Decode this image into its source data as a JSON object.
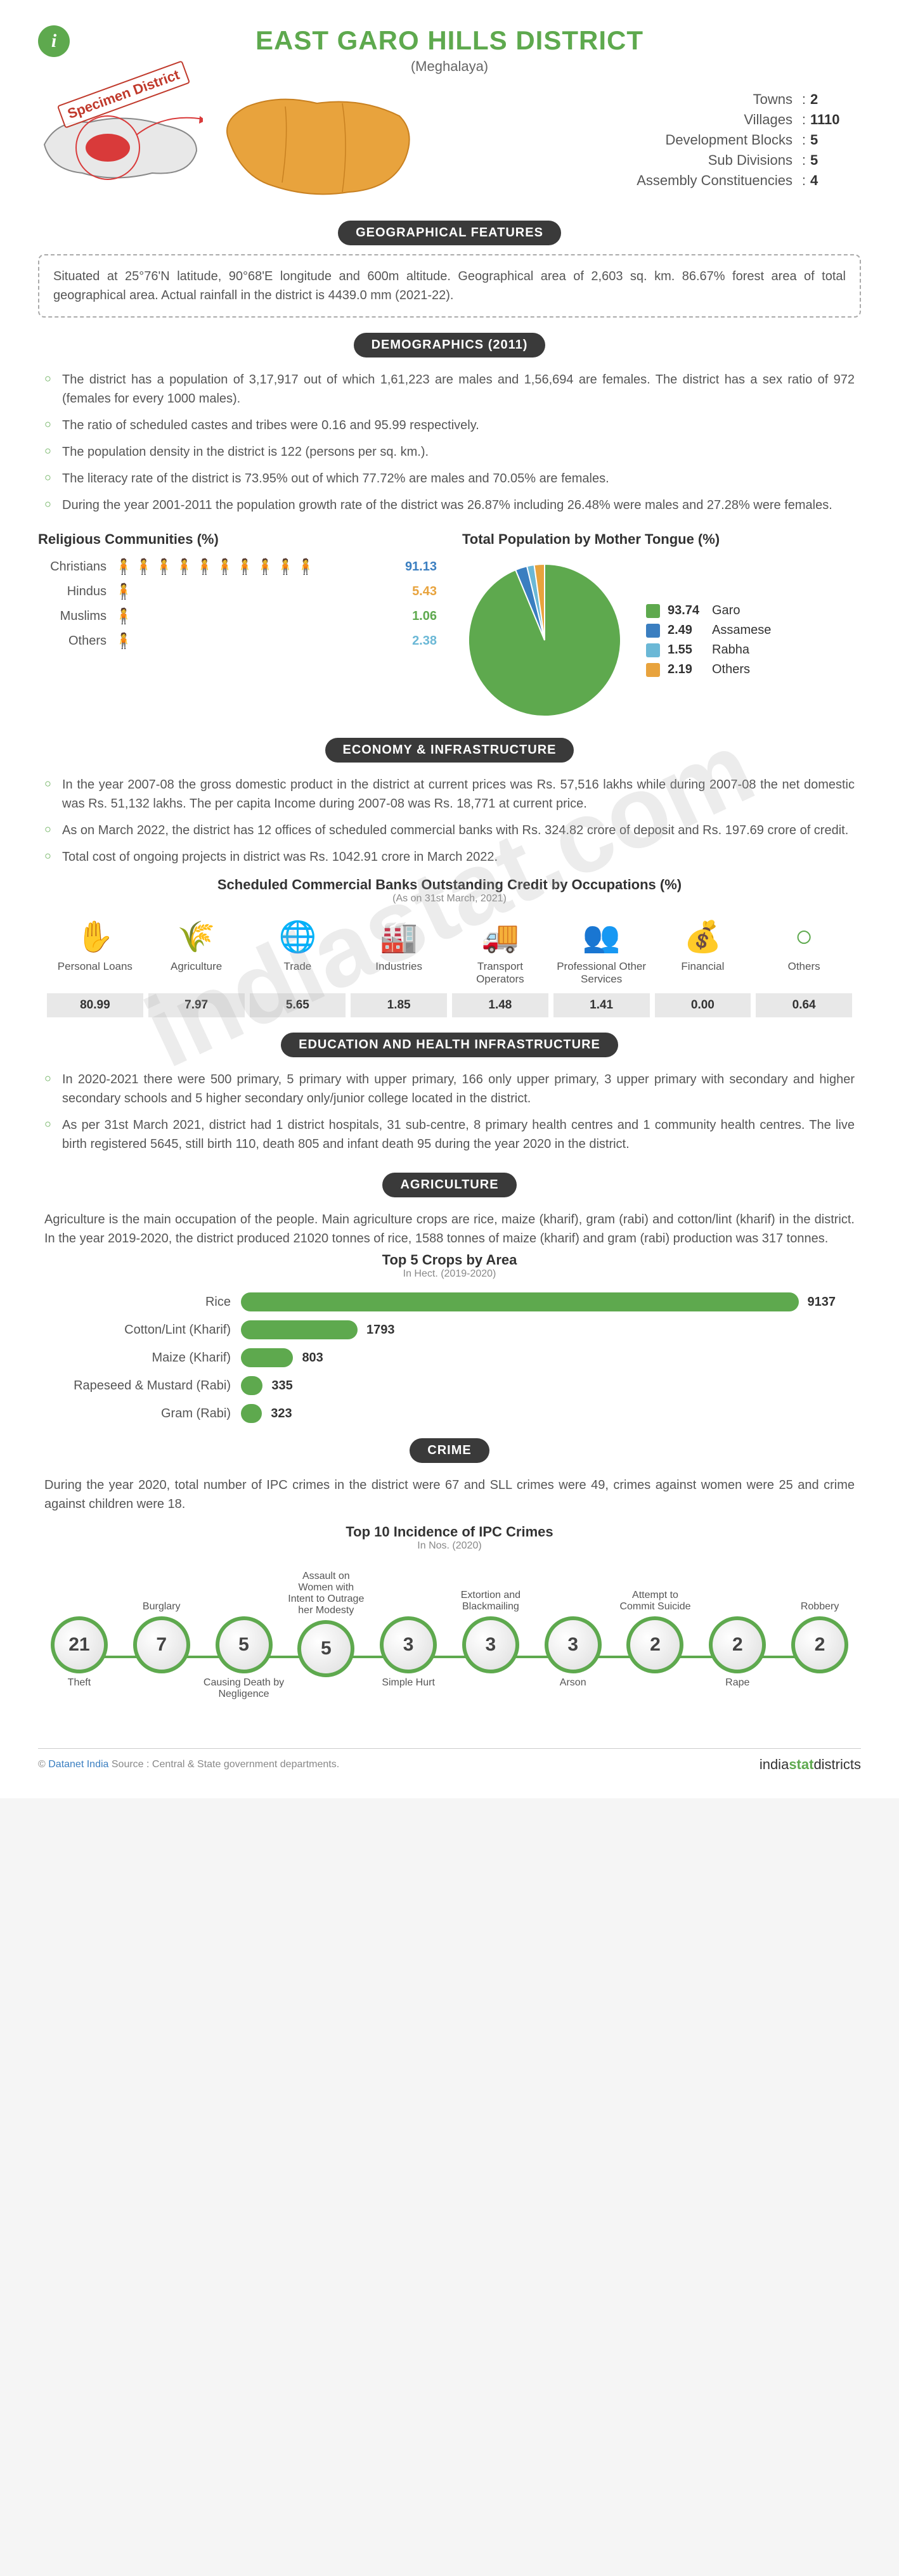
{
  "header": {
    "title": "EAST GARO HILLS DISTRICT",
    "subtitle": "(Meghalaya)",
    "specimen": "Specimen District",
    "stats": [
      {
        "label": "Towns",
        "value": "2"
      },
      {
        "label": "Villages",
        "value": "1110"
      },
      {
        "label": "Development Blocks",
        "value": "5"
      },
      {
        "label": "Sub Divisions",
        "value": "5"
      },
      {
        "label": "Assembly Constituencies",
        "value": "4"
      }
    ],
    "map_colors": {
      "base": "#e8e8e8",
      "highlight": "#d93a3a",
      "district": "#e8a33d",
      "outline": "#888"
    }
  },
  "geographical": {
    "banner": "GEOGRAPHICAL FEATURES",
    "text": "Situated at 25°76'N latitude, 90°68'E longitude and 600m altitude. Geographical area of 2,603 sq. km. 86.67% forest area of total geographical area. Actual rainfall in the district is 4439.0 mm (2021-22)."
  },
  "demographics": {
    "banner": "DEMOGRAPHICS (2011)",
    "bullets": [
      "The district has a population of 3,17,917 out of which 1,61,223 are males and 1,56,694 are females. The district has a sex ratio of 972 (females for every 1000 males).",
      "The ratio of scheduled castes and tribes were 0.16 and 95.99 respectively.",
      "The population density in the district is 122 (persons per sq. km.).",
      "The literacy rate of the district is 73.95% out of which 77.72% are males and 70.05% are females.",
      "During the year 2001-2011 the population growth rate of the district was 26.87% including 26.48% were males and 27.28% were females."
    ],
    "religion": {
      "title": "Religious Communities (%)",
      "rows": [
        {
          "label": "Christians",
          "value": "91.13",
          "color": "#3a7ec0",
          "count": 10
        },
        {
          "label": "Hindus",
          "value": "5.43",
          "color": "#e8a33d",
          "count": 1
        },
        {
          "label": "Muslims",
          "value": "1.06",
          "color": "#5ea94e",
          "count": 1
        },
        {
          "label": "Others",
          "value": "2.38",
          "color": "#6bb8d6",
          "count": 1
        }
      ]
    },
    "mothertongue": {
      "title": "Total Population by Mother Tongue (%)",
      "slices": [
        {
          "label": "Garo",
          "value": "93.74",
          "color": "#5ea94e"
        },
        {
          "label": "Assamese",
          "value": "2.49",
          "color": "#3a7ec0"
        },
        {
          "label": "Rabha",
          "value": "1.55",
          "color": "#6bb8d6"
        },
        {
          "label": "Others",
          "value": "2.19",
          "color": "#e8a33d"
        }
      ]
    }
  },
  "economy": {
    "banner": "ECONOMY & INFRASTRUCTURE",
    "bullets": [
      "In the year 2007-08 the gross domestic product in the district at current prices was Rs. 57,516 lakhs while during 2007-08 the net domestic was Rs. 51,132 lakhs. The per capita Income during 2007-08 was Rs. 18,771 at current price.",
      "As on March 2022, the district has 12 offices of scheduled commercial banks with Rs. 324.82 crore of deposit and Rs. 197.69 crore of credit.",
      "Total cost of ongoing projects in district was Rs. 1042.91 crore in March 2022."
    ],
    "credit": {
      "title": "Scheduled Commercial Banks Outstanding Credit by Occupations (%)",
      "subtitle": "(As on 31st March, 2021)",
      "items": [
        {
          "label": "Personal Loans",
          "value": "80.99",
          "icon": "✋"
        },
        {
          "label": "Agriculture",
          "value": "7.97",
          "icon": "🌾"
        },
        {
          "label": "Trade",
          "value": "5.65",
          "icon": "🌐"
        },
        {
          "label": "Industries",
          "value": "1.85",
          "icon": "🏭"
        },
        {
          "label": "Transport Operators",
          "value": "1.48",
          "icon": "🚚"
        },
        {
          "label": "Professional Other Services",
          "value": "1.41",
          "icon": "👥"
        },
        {
          "label": "Financial",
          "value": "0.00",
          "icon": "💰"
        },
        {
          "label": "Others",
          "value": "0.64",
          "icon": "○"
        }
      ]
    }
  },
  "education": {
    "banner": "EDUCATION AND HEALTH INFRASTRUCTURE",
    "bullets": [
      "In 2020-2021 there were 500 primary, 5 primary with upper primary, 166 only upper primary, 3 upper primary with secondary and higher secondary schools and 5 higher secondary only/junior college located in the district.",
      "As per 31st March 2021, district had 1 district hospitals, 31 sub-centre, 8 primary health centres and 1 community health centres. The live birth registered 5645, still birth 110, death 805 and infant death 95 during the year 2020 in the district."
    ]
  },
  "agriculture": {
    "banner": "AGRICULTURE",
    "text": "Agriculture is the main occupation of the people. Main agriculture crops are rice, maize (kharif), gram (rabi) and cotton/lint (kharif) in the district. In the year 2019-2020, the district produced 21020 tonnes of rice, 1588 tonnes of maize (kharif) and gram (rabi) production was 317 tonnes.",
    "crops": {
      "title": "Top 5 Crops by Area",
      "subtitle": "In Hect. (2019-2020)",
      "max": 9137,
      "rows": [
        {
          "label": "Rice",
          "value": 9137
        },
        {
          "label": "Cotton/Lint (Kharif)",
          "value": 1793
        },
        {
          "label": "Maize (Kharif)",
          "value": 803
        },
        {
          "label": "Rapeseed & Mustard (Rabi)",
          "value": 335
        },
        {
          "label": "Gram (Rabi)",
          "value": 323
        }
      ],
      "bar_color": "#5ea94e"
    }
  },
  "crime": {
    "banner": "CRIME",
    "text": "During the year 2020, total number of IPC crimes in the district were 67 and SLL crimes were 49, crimes against women were 25 and crime against children were 18.",
    "ipc": {
      "title": "Top 10 Incidence of IPC Crimes",
      "subtitle": "In Nos. (2020)",
      "items": [
        {
          "label": "Theft",
          "value": "21",
          "pos": "bottom"
        },
        {
          "label": "Burglary",
          "value": "7",
          "pos": "top"
        },
        {
          "label": "Causing Death by Negligence",
          "value": "5",
          "pos": "bottom"
        },
        {
          "label": "Assault on Women with Intent to Outrage her Modesty",
          "value": "5",
          "pos": "top"
        },
        {
          "label": "Simple Hurt",
          "value": "3",
          "pos": "bottom"
        },
        {
          "label": "Extortion and Blackmailing",
          "value": "3",
          "pos": "top"
        },
        {
          "label": "Arson",
          "value": "3",
          "pos": "bottom"
        },
        {
          "label": "Attempt to Commit Suicide",
          "value": "2",
          "pos": "top"
        },
        {
          "label": "Rape",
          "value": "2",
          "pos": "bottom"
        },
        {
          "label": "Robbery",
          "value": "2",
          "pos": "top"
        }
      ]
    }
  },
  "footer": {
    "source_prefix": "© ",
    "source_link": "Datanet India",
    "source_text": " Source : Central & State government departments.",
    "brand_prefix": "india",
    "brand_green": "stat",
    "brand_suffix": "districts"
  },
  "watermark": "indiastat.com"
}
